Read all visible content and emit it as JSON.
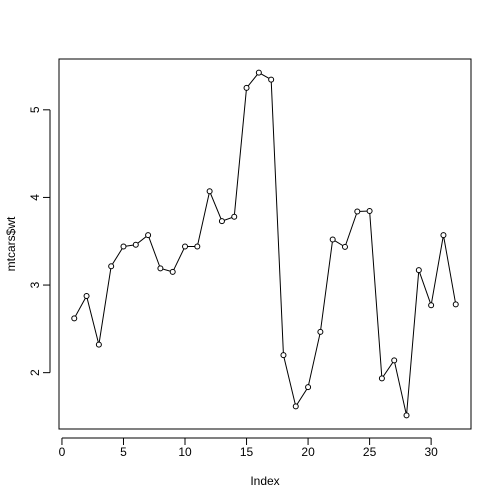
{
  "chart_data": {
    "type": "line",
    "xlabel": "Index",
    "ylabel": "mtcars$wt",
    "x": [
      1,
      2,
      3,
      4,
      5,
      6,
      7,
      8,
      9,
      10,
      11,
      12,
      13,
      14,
      15,
      16,
      17,
      18,
      19,
      20,
      21,
      22,
      23,
      24,
      25,
      26,
      27,
      28,
      29,
      30,
      31,
      32
    ],
    "values": [
      2.62,
      2.875,
      2.32,
      3.215,
      3.44,
      3.46,
      3.57,
      3.19,
      3.15,
      3.44,
      3.44,
      4.07,
      3.73,
      3.78,
      5.25,
      5.424,
      5.345,
      2.2,
      1.615,
      1.835,
      2.465,
      3.52,
      3.435,
      3.84,
      3.845,
      1.935,
      2.14,
      1.513,
      3.17,
      2.77,
      3.57,
      2.78
    ],
    "color": "#000000",
    "xlim": [
      -0.24,
      33.24
    ],
    "ylim": [
      1.357,
      5.58
    ],
    "xticks": [
      0,
      5,
      10,
      15,
      20,
      25,
      30
    ],
    "yticks": [
      2,
      3,
      4,
      5
    ]
  }
}
